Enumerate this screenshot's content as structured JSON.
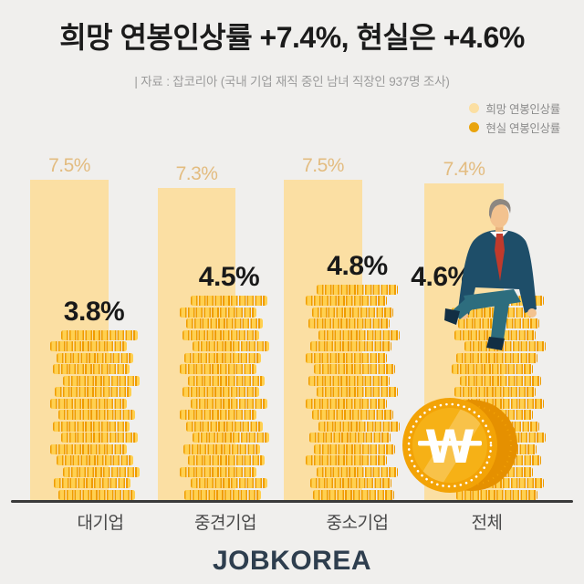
{
  "header": {
    "title": "희망 연봉인상률 +7.4%, 현실은 +4.6%",
    "source": "| 자료 : 잡코리아 (국내 기업 재직 중인 남녀 직장인 937명 조사)"
  },
  "legend": [
    {
      "label": "희망 연봉인상률",
      "color": "#fbdfa3"
    },
    {
      "label": "현실 연봉인상률",
      "color": "#e9a40e"
    }
  ],
  "chart_data": {
    "type": "bar",
    "categories": [
      "대기업",
      "중견기업",
      "중소기업",
      "전체"
    ],
    "series": [
      {
        "name": "희망 연봉인상률",
        "values": [
          7.5,
          7.3,
          7.5,
          7.4
        ],
        "labels": [
          "7.5%",
          "7.3%",
          "7.5%",
          "7.4%"
        ],
        "color": "#fbdfa3",
        "style": "solid-bar"
      },
      {
        "name": "현실 연봉인상률",
        "values": [
          3.8,
          4.5,
          4.8,
          4.6
        ],
        "labels": [
          "3.8%",
          "4.5%",
          "4.8%",
          "4.6%"
        ],
        "color": "#ef9c00",
        "style": "coin-stack"
      }
    ],
    "unit": "%",
    "ylim": [
      0,
      8
    ],
    "grid": false,
    "legend_position": "top-right",
    "baseline": "x-axis"
  },
  "decorations": {
    "won_coin_letter": "W",
    "man": "businessman-sitting-on-coins"
  },
  "footer": {
    "logo": "JOBKOREA"
  }
}
